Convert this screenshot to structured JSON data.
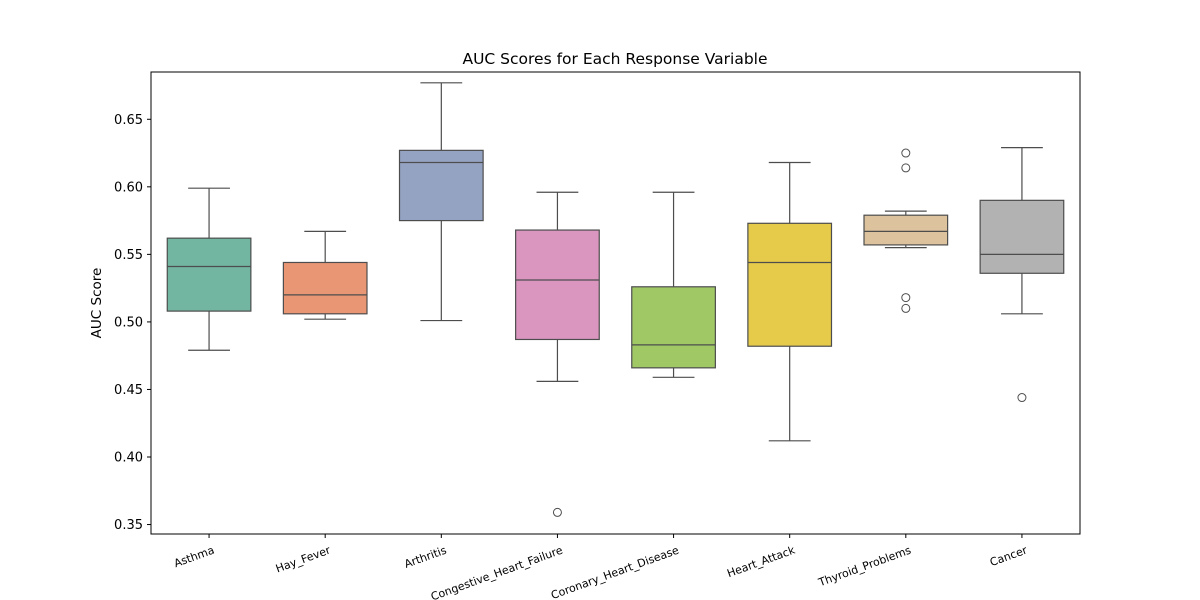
{
  "chart_data": {
    "type": "box",
    "title": "AUC Scores for Each Response Variable",
    "xlabel": "",
    "ylabel": "AUC Score",
    "ylim": [
      0.343,
      0.685
    ],
    "yticks": [
      "0.35",
      "0.40",
      "0.45",
      "0.50",
      "0.55",
      "0.60",
      "0.65"
    ],
    "grid": false,
    "categories": [
      "Asthma",
      "Hay_Fever",
      "Arthritis",
      "Congestive_Heart_Failure",
      "Coronary_Heart_Disease",
      "Heart_Attack",
      "Thyroid_Problems",
      "Cancer"
    ],
    "boxes": [
      {
        "category": "Asthma",
        "color": "#72b6a1",
        "whisker_low": 0.479,
        "q1": 0.508,
        "median": 0.541,
        "q3": 0.562,
        "whisker_high": 0.599,
        "outliers": []
      },
      {
        "category": "Hay_Fever",
        "color": "#e99675",
        "whisker_low": 0.502,
        "q1": 0.506,
        "median": 0.52,
        "q3": 0.544,
        "whisker_high": 0.567,
        "outliers": []
      },
      {
        "category": "Arthritis",
        "color": "#95a3c3",
        "whisker_low": 0.501,
        "q1": 0.575,
        "median": 0.618,
        "q3": 0.627,
        "whisker_high": 0.677,
        "outliers": []
      },
      {
        "category": "Congestive_Heart_Failure",
        "color": "#db96c0",
        "whisker_low": 0.456,
        "q1": 0.487,
        "median": 0.531,
        "q3": 0.568,
        "whisker_high": 0.596,
        "outliers": [
          0.359
        ]
      },
      {
        "category": "Coronary_Heart_Disease",
        "color": "#a0c966",
        "whisker_low": 0.459,
        "q1": 0.466,
        "median": 0.483,
        "q3": 0.526,
        "whisker_high": 0.596,
        "outliers": []
      },
      {
        "category": "Heart_Attack",
        "color": "#e6cb4a",
        "whisker_low": 0.412,
        "q1": 0.482,
        "median": 0.544,
        "q3": 0.573,
        "whisker_high": 0.618,
        "outliers": []
      },
      {
        "category": "Thyroid_Problems",
        "color": "#dcc39d",
        "whisker_low": 0.555,
        "q1": 0.557,
        "median": 0.567,
        "q3": 0.579,
        "whisker_high": 0.582,
        "outliers": [
          0.625,
          0.614,
          0.518,
          0.51
        ]
      },
      {
        "category": "Cancer",
        "color": "#b2b2b2",
        "whisker_low": 0.506,
        "q1": 0.536,
        "median": 0.55,
        "q3": 0.59,
        "whisker_high": 0.629,
        "outliers": [
          0.444
        ]
      }
    ]
  }
}
